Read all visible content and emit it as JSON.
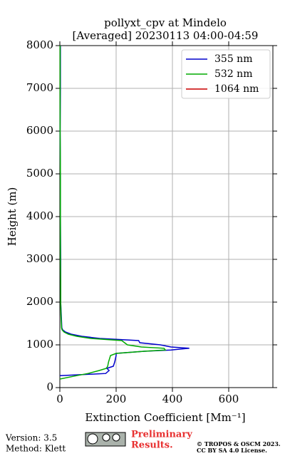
{
  "chart_data": {
    "type": "line",
    "title": "pollyxt_cpv at Mindelo",
    "subtitle": "[Averaged] 20230113 04:00-04:59",
    "x_label": "Extinction Coefficient [Mm⁻¹]",
    "y_label": "Height (m)",
    "heights": [
      200,
      280,
      330,
      400,
      450,
      500,
      600,
      750,
      800,
      850,
      880,
      920,
      950,
      1000,
      1050,
      1100,
      1150,
      1200,
      1250,
      1300,
      1350,
      1400,
      1700,
      2000,
      2500,
      3000,
      4000,
      5000,
      6000,
      7000,
      8000
    ],
    "series": [
      {
        "name": "355 nm",
        "color": "#0000cc",
        "values": [
          null,
          0,
          163,
          175,
          167,
          190,
          195,
          200,
          200,
          300,
          395,
          460,
          395,
          357,
          284,
          280,
          142,
          78,
          40,
          20,
          10,
          7,
          5,
          3,
          3,
          3,
          2,
          2,
          1,
          2,
          2
        ]
      },
      {
        "name": "532 nm",
        "color": "#00aa00",
        "values": [
          0,
          60,
          100,
          140,
          165,
          170,
          173,
          180,
          200,
          300,
          375,
          370,
          290,
          240,
          230,
          220,
          110,
          60,
          30,
          15,
          8,
          6,
          4,
          3,
          3,
          2,
          2,
          2,
          1,
          1,
          1
        ]
      },
      {
        "name": "1064 nm",
        "color": "#cc0000",
        "values": [
          null,
          null,
          null,
          null,
          null,
          null,
          null,
          null,
          null,
          null,
          null,
          null,
          null,
          null,
          null,
          null,
          null,
          null,
          null,
          null,
          null,
          null,
          null,
          null,
          null,
          null,
          null,
          null,
          null,
          null,
          null
        ]
      }
    ],
    "xlim": [
      0,
      757
    ],
    "ylim": [
      0,
      8000
    ],
    "xticks": [
      0,
      200,
      400,
      600
    ],
    "yticks": [
      0,
      1000,
      2000,
      3000,
      4000,
      5000,
      6000,
      7000,
      8000
    ],
    "grid": true,
    "legend": "upper right"
  },
  "footer": {
    "version": "Version: 3.5",
    "method": "Method: Klett",
    "notice": [
      "Preliminary",
      "Results."
    ],
    "copyright": [
      "© TROPOS & OSCM 2023.",
      "CC BY SA 4.0 License."
    ]
  }
}
